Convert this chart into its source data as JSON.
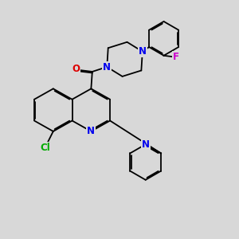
{
  "bg_color": "#d8d8d8",
  "bond_color": "#000000",
  "bond_width": 1.3,
  "dbo": 0.05,
  "atom_colors": {
    "N": "#0000ee",
    "O": "#dd0000",
    "Cl": "#00aa00",
    "F": "#cc00cc"
  },
  "afs": 8.5
}
